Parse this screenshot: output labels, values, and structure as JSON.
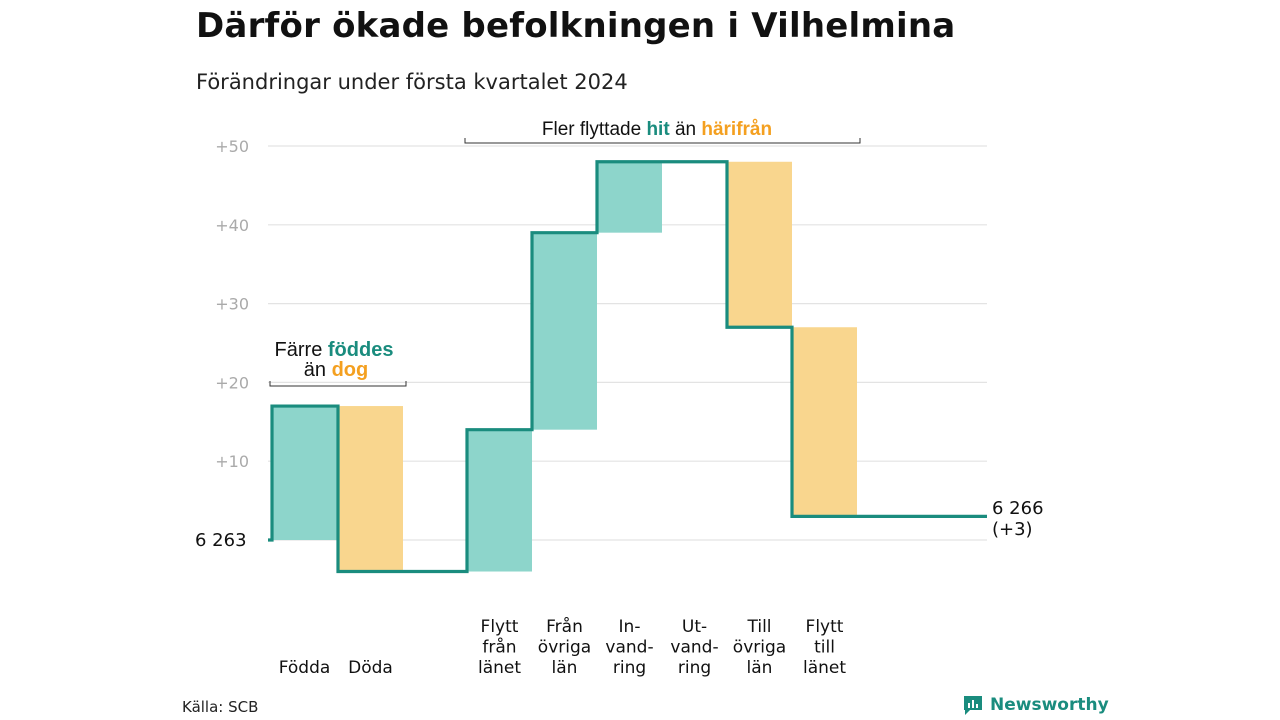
{
  "title": "Därför ökade befolkningen i Vilhelmina",
  "subtitle": "Förändringar under första kvartalet 2024",
  "source": "Källa: SCB",
  "brand": "Newsworthy",
  "colors": {
    "increase": "#8dd5cb",
    "decrease": "#f9d68e",
    "line": "#1a8c7e",
    "accent_orange": "#f4a020",
    "grid": "#e3e3e3",
    "axis_text": "#aaaaaa"
  },
  "annotations": {
    "births_deaths": {
      "prefix": "Färre",
      "hit": "föddes",
      "line2": "än",
      "orange": "dog"
    },
    "migration": {
      "prefix": "Fler flyttade",
      "hit": "hit",
      "middle": "än",
      "orange": "härifrån"
    }
  },
  "chart_data": {
    "type": "waterfall",
    "title": "Därför ökade befolkningen i Vilhelmina",
    "subtitle": "Förändringar under första kvartalet 2024",
    "baseline_population": 6263,
    "start_label": "6  263",
    "end_label": "6 266",
    "end_change_label": "(+3)",
    "ylim": [
      -5,
      50
    ],
    "yticks": [
      "+10",
      "+20",
      "+30",
      "+40",
      "+50"
    ],
    "ytick_values": [
      10,
      20,
      30,
      40,
      50
    ],
    "grid": true,
    "categories": [
      {
        "label": "Födda",
        "value": 17,
        "start": 0,
        "end": 17,
        "kind": "increase"
      },
      {
        "label": "Döda",
        "value": -21,
        "start": 17,
        "end": -4,
        "kind": "decrease"
      },
      {
        "label": "Flytt\nfrån\nlänet",
        "value": 18,
        "start": -4,
        "end": 14,
        "kind": "increase"
      },
      {
        "label": "Från\növriga\nlän",
        "value": 25,
        "start": 14,
        "end": 39,
        "kind": "increase"
      },
      {
        "label": "In-\nvand-\nring",
        "value": 9,
        "start": 39,
        "end": 48,
        "kind": "increase"
      },
      {
        "label": "Ut-\nvand-\nring",
        "value": 0,
        "start": 48,
        "end": 48,
        "kind": "zero"
      },
      {
        "label": "Till\növriga\nlän",
        "value": -21,
        "start": 48,
        "end": 27,
        "kind": "decrease"
      },
      {
        "label": "Flytt\ntill\nlänet",
        "value": -24,
        "start": 27,
        "end": 3,
        "kind": "decrease"
      }
    ],
    "final_value": 3
  }
}
